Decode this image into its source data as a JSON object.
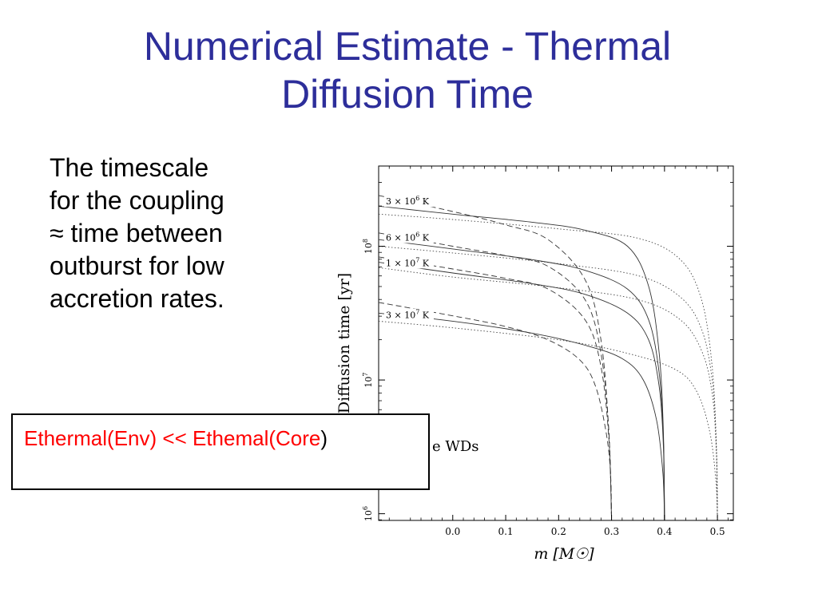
{
  "slide": {
    "title_lines": [
      "Numerical Estimate - Thermal",
      "Diffusion Time"
    ],
    "body_lines": [
      "The timescale",
      "for the coupling",
      "≈ time between",
      "outburst for low",
      "accretion rates."
    ],
    "equation": {
      "text": "Ethermal(Env) << Ethemal(Core",
      "closing": ")"
    },
    "caption_fragment": "e WDs"
  },
  "chart_data": {
    "type": "line",
    "xlabel": "m [M☉]",
    "ylabel": "Diffusion time [yr]",
    "x_ticks": [
      "0.0",
      "0.1",
      "0.2",
      "0.3",
      "0.4",
      "0.5"
    ],
    "x_tick_values": [
      0.0,
      0.1,
      0.2,
      0.3,
      0.4,
      0.5
    ],
    "y_ticks": [
      {
        "value": 1000000,
        "base": "10",
        "exp": "6"
      },
      {
        "value": 10000000,
        "base": "10",
        "exp": "7"
      },
      {
        "value": 100000000,
        "base": "10",
        "exp": "8"
      }
    ],
    "xlim": [
      -0.14,
      0.53
    ],
    "ylim_log10": [
      5.95,
      8.6
    ],
    "y_scale": "log",
    "grid": false,
    "line_styles": {
      "dashed": "0.3 M☉ core",
      "solid": "0.4 M☉ core",
      "dotted": "0.5 M☉ core"
    },
    "temperature_labels": [
      {
        "text": "3 × 10",
        "exp": "6",
        "unit": " K",
        "log_y": 8.33
      },
      {
        "text": "6 × 10",
        "exp": "6",
        "unit": " K",
        "log_y": 8.06
      },
      {
        "text": "1 × 10",
        "exp": "7",
        "unit": " K",
        "log_y": 7.87
      },
      {
        "text": "3 × 10",
        "exp": "7",
        "unit": " K",
        "log_y": 7.48
      }
    ],
    "series": [
      {
        "style": "dashed",
        "temperature": "3e6 K",
        "m_max": 0.3,
        "x": [
          -0.14,
          0.0,
          0.1,
          0.18,
          0.25,
          0.28,
          0.295,
          0.3
        ],
        "log_y": [
          8.38,
          8.26,
          8.16,
          8.05,
          7.75,
          7.3,
          6.6,
          5.95
        ]
      },
      {
        "style": "solid",
        "temperature": "3e6 K",
        "m_max": 0.4,
        "x": [
          -0.14,
          0.0,
          0.15,
          0.25,
          0.33,
          0.37,
          0.39,
          0.398,
          0.4
        ],
        "log_y": [
          8.3,
          8.24,
          8.18,
          8.12,
          8.0,
          7.7,
          7.2,
          6.6,
          5.95
        ]
      },
      {
        "style": "dotted",
        "temperature": "3e6 K",
        "m_max": 0.5,
        "x": [
          -0.14,
          0.0,
          0.2,
          0.35,
          0.43,
          0.47,
          0.49,
          0.498,
          0.5
        ],
        "log_y": [
          8.24,
          8.2,
          8.13,
          8.06,
          7.9,
          7.6,
          7.1,
          6.5,
          5.95
        ]
      },
      {
        "style": "dashed",
        "temperature": "6e6 K",
        "m_max": 0.3,
        "x": [
          -0.14,
          0.0,
          0.1,
          0.18,
          0.25,
          0.28,
          0.295,
          0.3
        ],
        "log_y": [
          8.1,
          8.0,
          7.93,
          7.85,
          7.6,
          7.2,
          6.6,
          5.95
        ]
      },
      {
        "style": "solid",
        "temperature": "6e6 K",
        "m_max": 0.4,
        "x": [
          -0.14,
          0.0,
          0.15,
          0.25,
          0.33,
          0.37,
          0.39,
          0.398,
          0.4
        ],
        "log_y": [
          8.05,
          7.98,
          7.9,
          7.82,
          7.68,
          7.45,
          7.05,
          6.55,
          5.95
        ]
      },
      {
        "style": "dotted",
        "temperature": "6e6 K",
        "m_max": 0.5,
        "x": [
          -0.14,
          0.0,
          0.2,
          0.35,
          0.43,
          0.47,
          0.49,
          0.498,
          0.5
        ],
        "log_y": [
          8.0,
          7.95,
          7.87,
          7.78,
          7.62,
          7.38,
          7.0,
          6.5,
          5.95
        ]
      },
      {
        "style": "dashed",
        "temperature": "1e7 K",
        "m_max": 0.3,
        "x": [
          -0.14,
          0.0,
          0.1,
          0.18,
          0.25,
          0.28,
          0.295,
          0.3
        ],
        "log_y": [
          7.92,
          7.83,
          7.76,
          7.68,
          7.45,
          7.1,
          6.55,
          5.95
        ]
      },
      {
        "style": "solid",
        "temperature": "1e7 K",
        "m_max": 0.4,
        "x": [
          -0.14,
          0.0,
          0.15,
          0.25,
          0.33,
          0.37,
          0.39,
          0.398,
          0.4
        ],
        "log_y": [
          7.88,
          7.8,
          7.72,
          7.64,
          7.5,
          7.3,
          6.95,
          6.5,
          5.95
        ]
      },
      {
        "style": "dotted",
        "temperature": "1e7 K",
        "m_max": 0.5,
        "x": [
          -0.14,
          0.0,
          0.2,
          0.35,
          0.43,
          0.47,
          0.49,
          0.498,
          0.5
        ],
        "log_y": [
          7.84,
          7.77,
          7.69,
          7.6,
          7.45,
          7.22,
          6.9,
          6.45,
          5.95
        ]
      },
      {
        "style": "dashed",
        "temperature": "3e7 K",
        "m_max": 0.3,
        "x": [
          -0.14,
          0.0,
          0.1,
          0.18,
          0.24,
          0.27,
          0.29,
          0.298,
          0.3
        ],
        "log_y": [
          7.58,
          7.48,
          7.4,
          7.3,
          7.15,
          6.95,
          6.6,
          6.3,
          5.95
        ]
      },
      {
        "style": "solid",
        "temperature": "3e7 K",
        "m_max": 0.4,
        "x": [
          -0.14,
          0.0,
          0.15,
          0.25,
          0.32,
          0.36,
          0.385,
          0.397,
          0.4
        ],
        "log_y": [
          7.5,
          7.44,
          7.35,
          7.26,
          7.16,
          7.0,
          6.7,
          6.3,
          5.95
        ]
      },
      {
        "style": "dotted",
        "temperature": "3e7 K",
        "m_max": 0.5,
        "x": [
          -0.14,
          0.0,
          0.2,
          0.33,
          0.42,
          0.46,
          0.485,
          0.497,
          0.5
        ],
        "log_y": [
          7.44,
          7.39,
          7.3,
          7.2,
          7.08,
          6.92,
          6.62,
          6.25,
          5.95
        ]
      }
    ]
  }
}
